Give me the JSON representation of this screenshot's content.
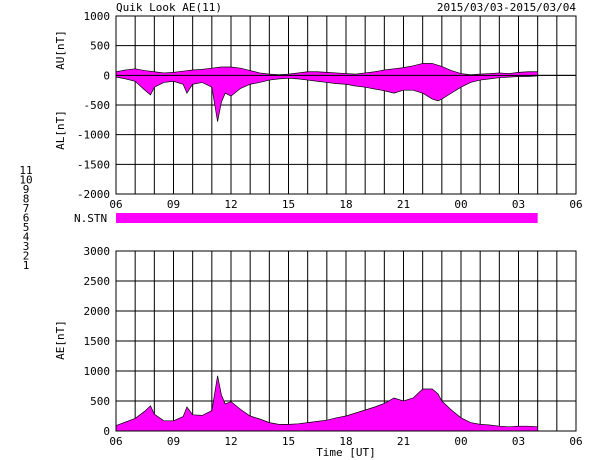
{
  "header": {
    "title": "Quik Look AE(11)",
    "date_range": "2015/03/03-2015/03/04"
  },
  "chart_data": [
    {
      "type": "area",
      "name": "AU/AL",
      "ylabel_upper": "AU[nT]",
      "ylabel_lower": "AL[nT]",
      "ylim": [
        -2000,
        1000
      ],
      "y_ticks": [
        1000,
        500,
        0,
        -500,
        -1000,
        -1500,
        -2000
      ],
      "x_range_hours": [
        0,
        24
      ],
      "x_tick_labels": [
        "06",
        "09",
        "12",
        "15",
        "18",
        "21",
        "00",
        "03",
        "06"
      ],
      "fill_color": "#ff00ff",
      "grid": true,
      "series": [
        {
          "id": "AU",
          "x": [
            0,
            0.5,
            1,
            1.5,
            2,
            2.5,
            3,
            3.5,
            4,
            4.5,
            5,
            5.5,
            6,
            6.5,
            7,
            7.5,
            8,
            8.5,
            9,
            9.5,
            10,
            10.5,
            11,
            11.5,
            12,
            12.5,
            13,
            13.5,
            14,
            14.5,
            15,
            15.5,
            16,
            16.5,
            17,
            17.5,
            18,
            18.5,
            19,
            19.5,
            20,
            20.5,
            21,
            21.5,
            22
          ],
          "values": [
            60,
            90,
            110,
            80,
            60,
            40,
            50,
            70,
            90,
            100,
            120,
            140,
            140,
            120,
            80,
            40,
            20,
            10,
            20,
            40,
            60,
            60,
            50,
            40,
            30,
            20,
            40,
            60,
            90,
            110,
            130,
            160,
            200,
            200,
            150,
            80,
            30,
            10,
            20,
            30,
            40,
            30,
            50,
            60,
            60
          ]
        },
        {
          "id": "AL",
          "x": [
            0,
            0.5,
            1,
            1.5,
            1.8,
            2,
            2.5,
            3,
            3.5,
            3.7,
            4,
            4.5,
            5,
            5.3,
            5.5,
            5.7,
            6,
            6.5,
            7,
            7.5,
            8,
            8.5,
            9,
            9.5,
            10,
            10.5,
            11,
            11.5,
            12,
            12.5,
            13,
            13.5,
            14,
            14.5,
            15,
            15.5,
            16,
            16.5,
            16.8,
            17,
            17.5,
            18,
            18.5,
            19,
            19.5,
            20,
            20.5,
            21,
            21.5,
            22
          ],
          "values": [
            -30,
            -60,
            -100,
            -250,
            -330,
            -200,
            -120,
            -100,
            -150,
            -300,
            -150,
            -120,
            -200,
            -780,
            -450,
            -300,
            -350,
            -220,
            -150,
            -120,
            -80,
            -60,
            -50,
            -60,
            -80,
            -100,
            -120,
            -140,
            -150,
            -180,
            -200,
            -230,
            -260,
            -300,
            -250,
            -250,
            -300,
            -400,
            -430,
            -400,
            -300,
            -200,
            -120,
            -80,
            -60,
            -40,
            -30,
            -20,
            -20,
            -10
          ]
        }
      ]
    },
    {
      "type": "bar",
      "name": "station count",
      "ylabel": "N.STN",
      "x_range_hours": [
        0,
        24
      ],
      "coverage_hours": [
        0,
        22
      ],
      "fill_color": "#ff00ff",
      "legend": {
        "placement": "left",
        "entries": [
          {
            "label": "11",
            "color": "#00e0e0"
          },
          {
            "label": "10",
            "color": "#ff00ff"
          },
          {
            "label": "9",
            "color": "#0000ff"
          },
          {
            "label": "8",
            "color": "#ffd000"
          },
          {
            "label": "7",
            "color": "#a0e060"
          },
          {
            "label": "6",
            "color": "#ff0000"
          },
          {
            "label": "5",
            "color": "#c0c0c0"
          },
          {
            "label": "4",
            "color": "#a0a0a0"
          },
          {
            "label": "3",
            "color": "#00a0a0"
          },
          {
            "label": "2",
            "color": "#c000c0"
          },
          {
            "label": "1",
            "color": "#0000a0"
          }
        ]
      }
    },
    {
      "type": "area",
      "name": "AE",
      "ylabel": "AE[nT]",
      "xlabel": "Time [UT]",
      "ylim": [
        0,
        3000
      ],
      "y_ticks": [
        3000,
        2500,
        2000,
        1500,
        1000,
        500,
        0
      ],
      "x_range_hours": [
        0,
        24
      ],
      "x_tick_labels": [
        "06",
        "09",
        "12",
        "15",
        "18",
        "21",
        "00",
        "03",
        "06"
      ],
      "fill_color": "#ff00ff",
      "grid": true,
      "series": [
        {
          "id": "AE",
          "x": [
            0,
            0.5,
            1,
            1.5,
            1.8,
            2,
            2.5,
            3,
            3.5,
            3.7,
            4,
            4.5,
            5,
            5.3,
            5.5,
            5.7,
            6,
            6.5,
            7,
            7.5,
            8,
            8.5,
            9,
            9.5,
            10,
            10.5,
            11,
            11.5,
            12,
            12.5,
            13,
            13.5,
            14,
            14.5,
            15,
            15.5,
            16,
            16.5,
            16.8,
            17,
            17.5,
            18,
            18.5,
            19,
            19.5,
            20,
            20.5,
            21,
            21.5,
            22
          ],
          "values": [
            90,
            150,
            210,
            330,
            420,
            280,
            170,
            170,
            240,
            400,
            270,
            260,
            340,
            920,
            600,
            450,
            490,
            360,
            250,
            200,
            140,
            110,
            110,
            120,
            140,
            160,
            180,
            220,
            250,
            300,
            350,
            400,
            460,
            550,
            500,
            550,
            700,
            700,
            620,
            500,
            350,
            220,
            140,
            110,
            100,
            80,
            70,
            80,
            80,
            70
          ]
        }
      ]
    }
  ]
}
